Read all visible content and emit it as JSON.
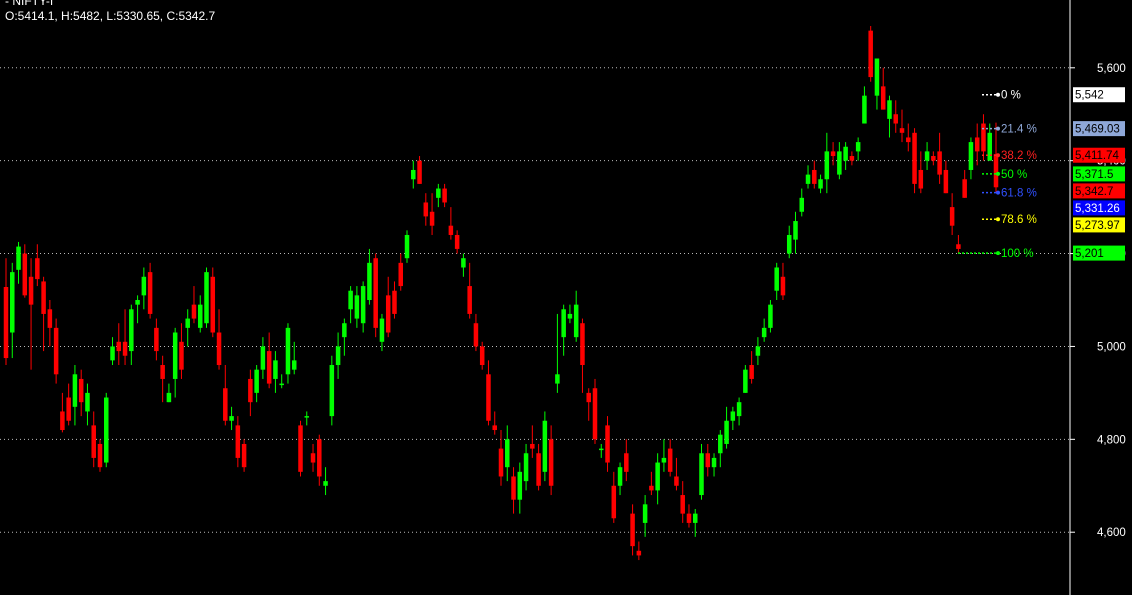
{
  "header": {
    "symbol": "- NIFTY-I",
    "ohlc": "O:5414.1, H:5482, L:5330.65, C:5342.7"
  },
  "chart_data": {
    "type": "candlestick",
    "y_range": [
      4510,
      5690
    ],
    "y_ticks": [
      {
        "value": 5600,
        "label": "5,600"
      },
      {
        "value": 5400,
        "label": "5,400"
      },
      {
        "value": 5200,
        "label": "5,200"
      },
      {
        "value": 5000,
        "label": "5,000"
      },
      {
        "value": 4800,
        "label": "4,800"
      },
      {
        "value": 4600,
        "label": "4,600"
      }
    ],
    "grid": "dotted horizontal",
    "colors": {
      "up": "#00ff00",
      "down": "#ff0000",
      "background": "#000000",
      "grid": "#bbbbbb"
    },
    "candles": [
      [
        5128,
        5190,
        4960,
        4975
      ],
      [
        5030,
        5180,
        4975,
        5160
      ],
      [
        5165,
        5225,
        5135,
        5215
      ],
      [
        5200,
        5220,
        5105,
        5110
      ],
      [
        5150,
        5190,
        4950,
        5090
      ],
      [
        5190,
        5220,
        5130,
        5145
      ],
      [
        5140,
        5150,
        4990,
        5070
      ],
      [
        5080,
        5100,
        5000,
        5040
      ],
      [
        5040,
        5060,
        4920,
        4940
      ],
      [
        4860,
        4900,
        4815,
        4820
      ],
      [
        4890,
        4920,
        4830,
        4840
      ],
      [
        4870,
        4960,
        4830,
        4940
      ],
      [
        4930,
        4950,
        4850,
        4880
      ],
      [
        4860,
        4920,
        4830,
        4900
      ],
      [
        4830,
        4860,
        4740,
        4760
      ],
      [
        4790,
        4800,
        4730,
        4740
      ],
      [
        4750,
        4900,
        4740,
        4890
      ],
      [
        4970,
        5020,
        4960,
        5000
      ],
      [
        5010,
        5050,
        4960,
        4990
      ],
      [
        5010,
        5080,
        4960,
        4980
      ],
      [
        4990,
        5090,
        4960,
        5080
      ],
      [
        5090,
        5110,
        5050,
        5100
      ],
      [
        5110,
        5170,
        5080,
        5150
      ],
      [
        5160,
        5180,
        5060,
        5070
      ],
      [
        5040,
        5060,
        4970,
        4990
      ],
      [
        4960,
        4980,
        4880,
        4930
      ],
      [
        4880,
        4920,
        4880,
        4900
      ],
      [
        4930,
        5040,
        4890,
        5030
      ],
      [
        5010,
        5050,
        4930,
        4950
      ],
      [
        5040,
        5080,
        5000,
        5060
      ],
      [
        5090,
        5130,
        5050,
        5060
      ],
      [
        5040,
        5110,
        5030,
        5090
      ],
      [
        5050,
        5170,
        5040,
        5160
      ],
      [
        5150,
        5170,
        5020,
        5030
      ],
      [
        5030,
        5080,
        4950,
        4960
      ],
      [
        4910,
        4960,
        4830,
        4840
      ],
      [
        4840,
        4870,
        4820,
        4850
      ],
      [
        4830,
        4850,
        4740,
        4760
      ],
      [
        4790,
        4800,
        4730,
        4740
      ],
      [
        4930,
        4950,
        4850,
        4880
      ],
      [
        4900,
        4960,
        4880,
        4950
      ],
      [
        4950,
        5020,
        4930,
        5000
      ],
      [
        4990,
        5030,
        4910,
        4920
      ],
      [
        4930,
        4990,
        4900,
        4970
      ],
      [
        4920,
        4940,
        4910,
        4920
      ],
      [
        4940,
        5050,
        4920,
        5040
      ],
      [
        4950,
        5010,
        4940,
        4970
      ],
      [
        4830,
        4840,
        4720,
        4730
      ],
      [
        4850,
        4860,
        4830,
        4850
      ],
      [
        4770,
        4790,
        4730,
        4750
      ],
      [
        4800,
        4810,
        4700,
        4720
      ],
      [
        4700,
        4740,
        4680,
        4710
      ],
      [
        4850,
        4980,
        4830,
        4960
      ],
      [
        4960,
        5030,
        4930,
        5000
      ],
      [
        5020,
        5060,
        4980,
        5050
      ],
      [
        5080,
        5130,
        5050,
        5120
      ],
      [
        5060,
        5130,
        5040,
        5110
      ],
      [
        5050,
        5140,
        5030,
        5130
      ],
      [
        5100,
        5210,
        5090,
        5180
      ],
      [
        5190,
        5200,
        5020,
        5040
      ],
      [
        5010,
        5070,
        4990,
        5060
      ],
      [
        5110,
        5150,
        5020,
        5030
      ],
      [
        5120,
        5140,
        5060,
        5070
      ],
      [
        5180,
        5200,
        5120,
        5130
      ],
      [
        5190,
        5250,
        5180,
        5240
      ],
      [
        5360,
        5400,
        5340,
        5380
      ],
      [
        5400,
        5410,
        5350,
        5350
      ],
      [
        5310,
        5330,
        5260,
        5280
      ],
      [
        5290,
        5330,
        5240,
        5260
      ],
      [
        5320,
        5350,
        5300,
        5340
      ],
      [
        5340,
        5350,
        5300,
        5310
      ],
      [
        5260,
        5300,
        5230,
        5240
      ],
      [
        5240,
        5250,
        5200,
        5210
      ],
      [
        5170,
        5200,
        5150,
        5190
      ],
      [
        5130,
        5180,
        5060,
        5070
      ],
      [
        5050,
        5070,
        4990,
        5000
      ],
      [
        5000,
        5010,
        4950,
        4960
      ],
      [
        4940,
        4970,
        4830,
        4840
      ],
      [
        4830,
        4860,
        4810,
        4820
      ],
      [
        4780,
        4820,
        4700,
        4720
      ],
      [
        4740,
        4830,
        4710,
        4800
      ],
      [
        4720,
        4740,
        4640,
        4670
      ],
      [
        4670,
        4750,
        4640,
        4730
      ],
      [
        4710,
        4790,
        4690,
        4770
      ],
      [
        4790,
        4830,
        4760,
        4780
      ],
      [
        4770,
        4790,
        4690,
        4700
      ],
      [
        4730,
        4860,
        4710,
        4840
      ],
      [
        4800,
        4830,
        4680,
        4700
      ],
      [
        4920,
        5070,
        4900,
        4940
      ],
      [
        5020,
        5090,
        4980,
        5080
      ],
      [
        5060,
        5090,
        5050,
        5070
      ],
      [
        5020,
        5120,
        5010,
        5090
      ],
      [
        5050,
        5060,
        4900,
        4960
      ],
      [
        4900,
        4910,
        4840,
        4880
      ],
      [
        4910,
        4930,
        4790,
        4800
      ],
      [
        4780,
        4790,
        4760,
        4780
      ],
      [
        4830,
        4850,
        4730,
        4750
      ],
      [
        4700,
        4730,
        4620,
        4630
      ],
      [
        4700,
        4750,
        4680,
        4740
      ],
      [
        4770,
        4800,
        4710,
        4730
      ],
      [
        4640,
        4660,
        4550,
        4570
      ],
      [
        4560,
        4580,
        4540,
        4550
      ],
      [
        4620,
        4680,
        4590,
        4660
      ],
      [
        4700,
        4730,
        4680,
        4690
      ],
      [
        4690,
        4770,
        4660,
        4750
      ],
      [
        4750,
        4800,
        4730,
        4760
      ],
      [
        4780,
        4800,
        4720,
        4730
      ],
      [
        4720,
        4760,
        4690,
        4700
      ],
      [
        4680,
        4710,
        4620,
        4640
      ],
      [
        4640,
        4660,
        4610,
        4620
      ],
      [
        4620,
        4650,
        4590,
        4640
      ],
      [
        4680,
        4790,
        4670,
        4770
      ],
      [
        4770,
        4790,
        4720,
        4740
      ],
      [
        4740,
        4770,
        4720,
        4760
      ],
      [
        4770,
        4820,
        4740,
        4810
      ],
      [
        4790,
        4870,
        4780,
        4840
      ],
      [
        4840,
        4870,
        4820,
        4860
      ],
      [
        4850,
        4890,
        4830,
        4880
      ],
      [
        4900,
        4960,
        4900,
        4950
      ],
      [
        4960,
        4990,
        4920,
        4930
      ],
      [
        4980,
        5020,
        4960,
        5000
      ],
      [
        5020,
        5060,
        5010,
        5040
      ],
      [
        5040,
        5100,
        5030,
        5090
      ],
      [
        5120,
        5180,
        5100,
        5170
      ],
      [
        5150,
        5180,
        5100,
        5110
      ],
      [
        5200,
        5260,
        5190,
        5240
      ],
      [
        5230,
        5290,
        5200,
        5270
      ],
      [
        5290,
        5340,
        5280,
        5320
      ],
      [
        5350,
        5390,
        5340,
        5370
      ],
      [
        5380,
        5400,
        5340,
        5350
      ],
      [
        5340,
        5370,
        5330,
        5360
      ],
      [
        5360,
        5460,
        5330,
        5420
      ],
      [
        5420,
        5440,
        5390,
        5410
      ],
      [
        5370,
        5440,
        5360,
        5420
      ],
      [
        5400,
        5440,
        5380,
        5430
      ],
      [
        5410,
        5420,
        5390,
        5400
      ],
      [
        5420,
        5450,
        5400,
        5440
      ],
      [
        5480,
        5560,
        5480,
        5540
      ],
      [
        5680,
        5690,
        5570,
        5580
      ],
      [
        5540,
        5620,
        5510,
        5620
      ],
      [
        5560,
        5600,
        5510,
        5510
      ],
      [
        5490,
        5540,
        5450,
        5530
      ],
      [
        5500,
        5530,
        5460,
        5480
      ],
      [
        5470,
        5510,
        5440,
        5460
      ],
      [
        5450,
        5480,
        5420,
        5440
      ],
      [
        5460,
        5470,
        5330,
        5350
      ],
      [
        5380,
        5420,
        5330,
        5340
      ],
      [
        5400,
        5440,
        5380,
        5420
      ],
      [
        5410,
        5420,
        5390,
        5400
      ],
      [
        5420,
        5460,
        5350,
        5370
      ],
      [
        5380,
        5400,
        5330,
        5330
      ],
      [
        5300,
        5330,
        5240,
        5260
      ],
      [
        5220,
        5240,
        5200,
        5210
      ],
      [
        5360,
        5380,
        5320,
        5320
      ],
      [
        5380,
        5450,
        5360,
        5440
      ],
      [
        5450,
        5480,
        5390,
        5420
      ],
      [
        5480,
        5500,
        5400,
        5420
      ],
      [
        5400,
        5480,
        5400,
        5460
      ],
      [
        5414.1,
        5482,
        5330.65,
        5342.7
      ]
    ],
    "fibonacci": [
      {
        "label": "0 %",
        "value": 5542,
        "price_label": "5,542",
        "color": "#ffffff",
        "box": "#ffffff",
        "box_text": "#000000"
      },
      {
        "label": "21.4 %",
        "value": 5469.03,
        "price_label": "5,469.03",
        "color": "#8fa8d8",
        "box": "#8fa8d8",
        "box_text": "#000000"
      },
      {
        "label": "38.2 %",
        "value": 5411.74,
        "price_label": "5,411.74",
        "color": "#ff2020",
        "box": "#ff0000",
        "box_text": "#000000"
      },
      {
        "label": "50 %",
        "value": 5371.5,
        "price_label": "5,371.5",
        "color": "#00ff00",
        "box": "#00ff00",
        "box_text": "#000000"
      },
      {
        "label": "61.8 %",
        "value": 5331.26,
        "price_label": "5,331.26",
        "color": "#3050ff",
        "box": "#0000ff",
        "box_text": "#ffffff"
      },
      {
        "label": "78.6 %",
        "value": 5273.97,
        "price_label": "5,273.97",
        "color": "#ffff00",
        "box": "#ffff00",
        "box_text": "#000000"
      },
      {
        "label": "100 %",
        "value": 5201,
        "price_label": "5,201",
        "color": "#00ff00",
        "box": "#00ff00",
        "box_text": "#000000"
      }
    ],
    "last_close": {
      "value": 5342.7,
      "price_label": "5,342.7",
      "box": "#ff0000",
      "box_text": "#000000"
    }
  }
}
